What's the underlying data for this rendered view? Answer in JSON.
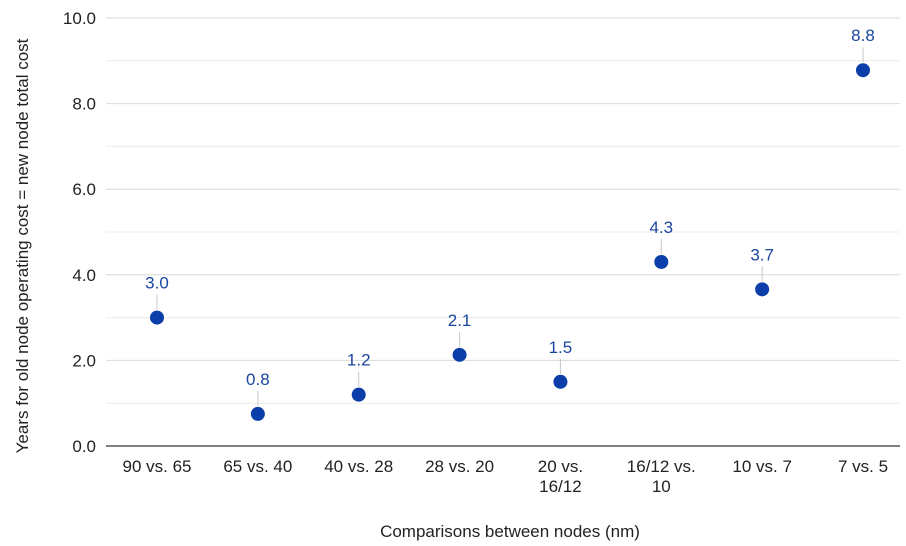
{
  "chart_data": {
    "type": "scatter",
    "categories": [
      [
        "90 vs. 65"
      ],
      [
        "65 vs. 40"
      ],
      [
        "40 vs. 28"
      ],
      [
        "28 vs. 20"
      ],
      [
        "20 vs.",
        "16/12"
      ],
      [
        "16/12 vs.",
        "10"
      ],
      [
        "10 vs. 7"
      ],
      [
        "7 vs. 5"
      ]
    ],
    "values": [
      3.0,
      0.75,
      1.2,
      2.13,
      1.5,
      4.3,
      3.66,
      8.78
    ],
    "data_labels": [
      "3.0",
      "0.8",
      "1.2",
      "2.1",
      "1.5",
      "4.3",
      "3.7",
      "8.8"
    ],
    "xlabel": "Comparisons between nodes (nm)",
    "ylabel": "Years for old node operating cost = new node total cost",
    "ylim": [
      0,
      10
    ],
    "yticks": [
      "0.0",
      "2.0",
      "4.0",
      "6.0",
      "8.0",
      "10.0"
    ],
    "grid": true,
    "point_color": "#0b3ea8",
    "label_color": "#1a46a0"
  }
}
